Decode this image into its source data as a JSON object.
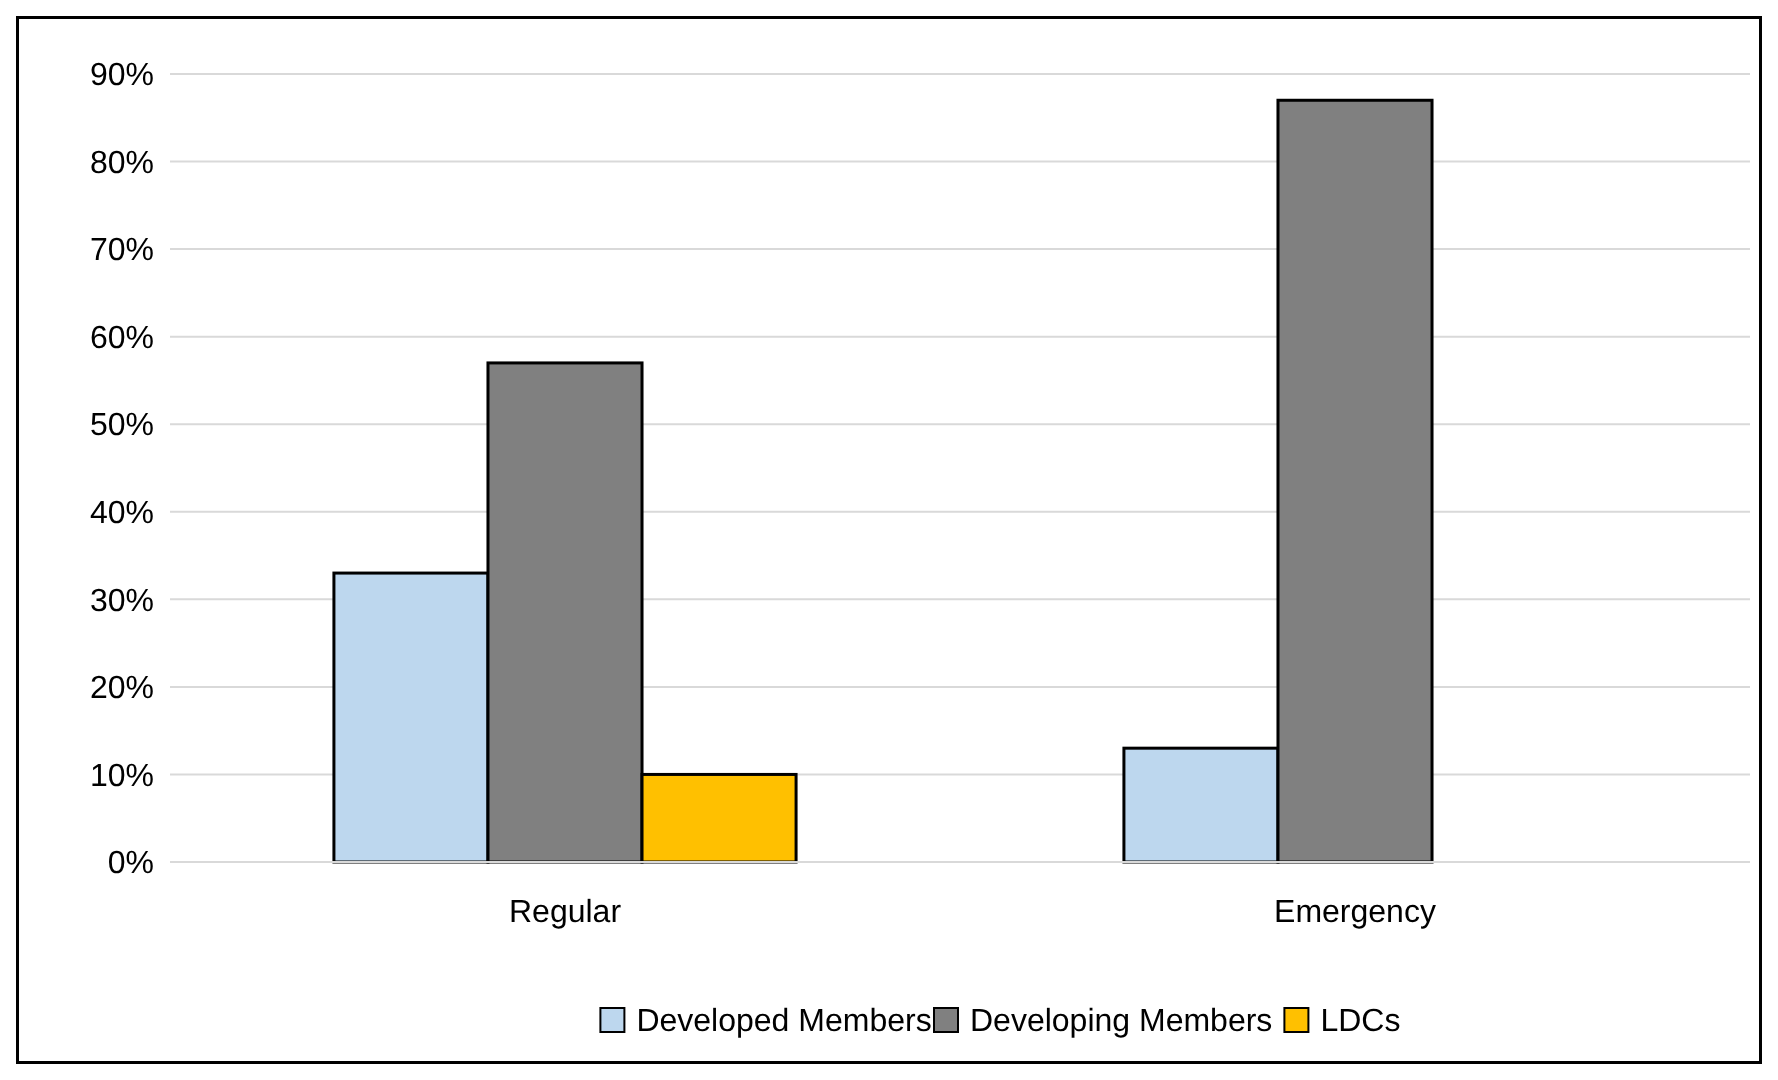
{
  "chart_data": {
    "type": "bar",
    "categories": [
      "Regular",
      "Emergency"
    ],
    "series": [
      {
        "name": "Developed Members",
        "color": "#bdd7ee",
        "values": [
          33,
          13
        ]
      },
      {
        "name": "Developing Members",
        "color": "#808080",
        "values": [
          57,
          87
        ]
      },
      {
        "name": "LDCs",
        "color": "#ffc000",
        "values": [
          10,
          null
        ]
      }
    ],
    "ylim": [
      0,
      90
    ],
    "yticks": [
      {
        "value": 0,
        "label": "0%"
      },
      {
        "value": 10,
        "label": "10%"
      },
      {
        "value": 20,
        "label": "20%"
      },
      {
        "value": 30,
        "label": "30%"
      },
      {
        "value": 40,
        "label": "40%"
      },
      {
        "value": 50,
        "label": "50%"
      },
      {
        "value": 60,
        "label": "60%"
      },
      {
        "value": 70,
        "label": "70%"
      },
      {
        "value": 80,
        "label": "80%"
      },
      {
        "value": 90,
        "label": "90%"
      }
    ],
    "grid": "y",
    "legend": "bottom"
  }
}
